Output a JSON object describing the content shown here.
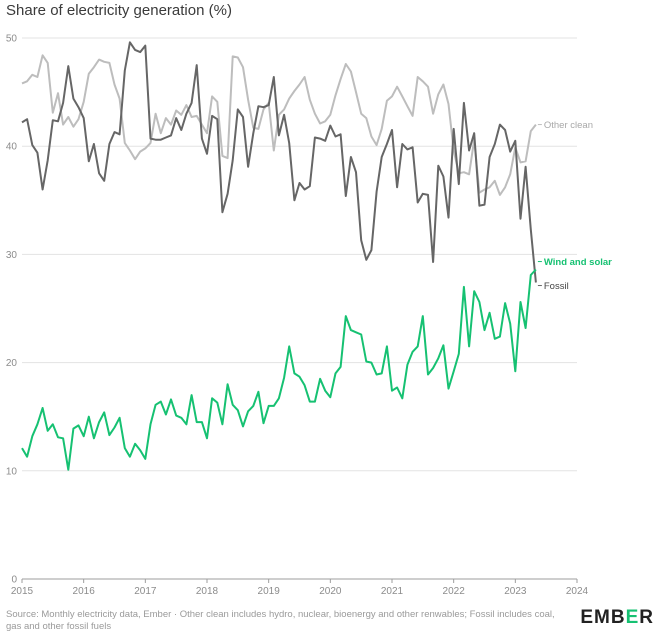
{
  "title": "Share of electricity generation (%)",
  "footer": {
    "source": "Source: Monthly electricity data, Ember · Other clean includes hydro, nuclear, bioenergy and other renwables; Fossil includes coal, gas and other fossil fuels",
    "logo_prefix": "EMB",
    "logo_accent": "E",
    "logo_suffix": "R"
  },
  "chart_data": {
    "type": "line",
    "title": "Share of electricity generation (%)",
    "xlim": [
      "2015-01",
      "2024-01"
    ],
    "ylim": [
      0,
      50
    ],
    "grid": true,
    "y_ticks": [
      0,
      10,
      20,
      30,
      40,
      50
    ],
    "x_ticks": [
      "2015",
      "2016",
      "2017",
      "2018",
      "2019",
      "2020",
      "2021",
      "2022",
      "2023",
      "2024"
    ],
    "x": [
      "2015-01",
      "2015-02",
      "2015-03",
      "2015-04",
      "2015-05",
      "2015-06",
      "2015-07",
      "2015-08",
      "2015-09",
      "2015-10",
      "2015-11",
      "2015-12",
      "2016-01",
      "2016-02",
      "2016-03",
      "2016-04",
      "2016-05",
      "2016-06",
      "2016-07",
      "2016-08",
      "2016-09",
      "2016-10",
      "2016-11",
      "2016-12",
      "2017-01",
      "2017-02",
      "2017-03",
      "2017-04",
      "2017-05",
      "2017-06",
      "2017-07",
      "2017-08",
      "2017-09",
      "2017-10",
      "2017-11",
      "2017-12",
      "2018-01",
      "2018-02",
      "2018-03",
      "2018-04",
      "2018-05",
      "2018-06",
      "2018-07",
      "2018-08",
      "2018-09",
      "2018-10",
      "2018-11",
      "2018-12",
      "2019-01",
      "2019-02",
      "2019-03",
      "2019-04",
      "2019-05",
      "2019-06",
      "2019-07",
      "2019-08",
      "2019-09",
      "2019-10",
      "2019-11",
      "2019-12",
      "2020-01",
      "2020-02",
      "2020-03",
      "2020-04",
      "2020-05",
      "2020-06",
      "2020-07",
      "2020-08",
      "2020-09",
      "2020-10",
      "2020-11",
      "2020-12",
      "2021-01",
      "2021-02",
      "2021-03",
      "2021-04",
      "2021-05",
      "2021-06",
      "2021-07",
      "2021-08",
      "2021-09",
      "2021-10",
      "2021-11",
      "2021-12",
      "2022-01",
      "2022-02",
      "2022-03",
      "2022-04",
      "2022-05",
      "2022-06",
      "2022-07",
      "2022-08",
      "2022-09",
      "2022-10",
      "2022-11",
      "2022-12",
      "2023-01",
      "2023-02",
      "2023-03",
      "2023-04",
      "2023-05"
    ],
    "series": [
      {
        "name": "Other clean",
        "color": "#bdbdbd",
        "values": [
          45.8,
          46.0,
          46.6,
          46.4,
          48.4,
          47.7,
          43.1,
          44.9,
          42.0,
          42.7,
          41.8,
          42.5,
          44.1,
          46.7,
          47.3,
          48.0,
          47.8,
          47.7,
          45.7,
          44.4,
          40.3,
          39.6,
          38.8,
          39.5,
          39.8,
          40.3,
          43.0,
          41.2,
          42.6,
          42.0,
          43.3,
          42.9,
          43.8,
          42.7,
          42.8,
          42.0,
          41.2,
          44.6,
          44.1,
          39.1,
          38.9,
          48.3,
          48.2,
          47.3,
          44.3,
          41.7,
          41.6,
          43.4,
          44.0,
          39.6,
          42.9,
          43.4,
          44.4,
          45.1,
          45.7,
          46.4,
          44.3,
          43.0,
          42.1,
          42.3,
          42.9,
          44.7,
          46.2,
          47.6,
          46.9,
          45.0,
          43.0,
          42.6,
          40.9,
          40.1,
          41.6,
          44.2,
          44.6,
          45.5,
          44.6,
          43.7,
          42.8,
          46.4,
          46.0,
          45.5,
          43.0,
          44.8,
          45.7,
          43.9,
          39.6,
          37.5,
          37.6,
          37.4,
          40.6,
          35.7,
          36.0,
          36.2,
          36.8,
          35.5,
          36.2,
          37.4,
          39.9,
          38.5,
          38.6,
          41.4,
          42.0
        ]
      },
      {
        "name": "Fossil",
        "color": "#666666",
        "values": [
          42.2,
          42.5,
          40.1,
          39.4,
          36.0,
          38.7,
          42.4,
          42.3,
          44.0,
          47.4,
          44.4,
          43.6,
          42.6,
          38.6,
          40.2,
          37.5,
          36.8,
          40.2,
          41.3,
          41.1,
          47.0,
          49.6,
          48.9,
          48.7,
          49.3,
          40.7,
          40.6,
          40.6,
          40.8,
          41.0,
          42.6,
          41.5,
          43.0,
          44.0,
          47.5,
          40.7,
          39.3,
          42.8,
          42.5,
          33.9,
          35.6,
          38.7,
          43.4,
          42.7,
          38.1,
          41.2,
          43.7,
          43.6,
          43.8,
          46.4,
          41.0,
          42.9,
          40.3,
          35.0,
          36.6,
          36.0,
          36.3,
          40.8,
          40.7,
          40.5,
          41.9,
          40.9,
          41.1,
          35.4,
          39.0,
          37.6,
          31.3,
          29.5,
          30.4,
          35.8,
          39.0,
          40.2,
          41.5,
          36.2,
          40.2,
          39.7,
          39.9,
          34.8,
          35.6,
          35.5,
          29.3,
          38.2,
          37.2,
          33.4,
          41.6,
          36.5,
          44.0,
          39.6,
          41.2,
          34.5,
          34.6,
          39.0,
          40.2,
          42.0,
          41.5,
          39.5,
          40.5,
          33.3,
          38.1,
          32.3,
          27.4
        ]
      },
      {
        "name": "Wind and solar",
        "color": "#16c172",
        "values": [
          12.1,
          11.3,
          13.2,
          14.3,
          15.8,
          13.7,
          14.3,
          13.1,
          13.0,
          10.1,
          13.9,
          14.2,
          13.2,
          15.0,
          13.0,
          14.5,
          15.4,
          13.3,
          14.0,
          14.9,
          12.1,
          11.3,
          12.5,
          11.9,
          11.1,
          14.3,
          16.1,
          16.4,
          15.2,
          16.6,
          15.1,
          14.9,
          14.3,
          17.0,
          14.5,
          14.5,
          13.0,
          16.7,
          16.3,
          14.3,
          18.0,
          16.1,
          15.6,
          14.1,
          15.5,
          16.0,
          17.3,
          14.4,
          16.0,
          16.0,
          16.7,
          18.6,
          21.5,
          19.0,
          18.7,
          17.9,
          16.4,
          16.4,
          18.5,
          17.4,
          16.8,
          19.0,
          19.6,
          24.3,
          23.0,
          22.8,
          22.6,
          20.1,
          20.0,
          18.9,
          19.0,
          21.5,
          17.4,
          17.7,
          16.7,
          19.8,
          21.0,
          21.5,
          24.3,
          18.9,
          19.5,
          20.4,
          21.6,
          17.6,
          19.2,
          20.8,
          27.0,
          21.5,
          26.6,
          25.6,
          23.0,
          24.6,
          22.2,
          22.4,
          25.5,
          23.6,
          19.2,
          25.6,
          23.2,
          28.1,
          28.6
        ]
      }
    ]
  }
}
